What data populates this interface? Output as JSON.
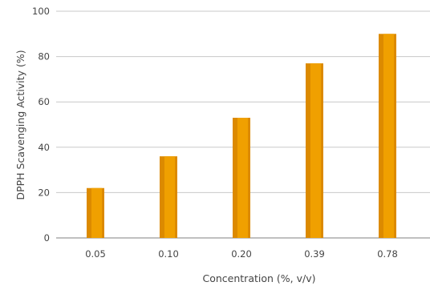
{
  "chart_data": {
    "type": "bar",
    "title": "",
    "xlabel": "Concentration (%, v/v)",
    "ylabel": "DPPH Scavenging Activity (%)",
    "categories": [
      "0.05",
      "0.10",
      "0.20",
      "0.39",
      "0.78"
    ],
    "values": [
      22,
      36,
      53,
      77,
      90
    ],
    "ylim": [
      0,
      100
    ],
    "yticks": [
      "0",
      "20",
      "40",
      "60",
      "80",
      "100"
    ],
    "grid": true,
    "legend": "none",
    "colors": {
      "bar": "#F0A000",
      "bar_shade": "#DC8A00",
      "grid": "#C8C8C8",
      "text": "#444444"
    }
  }
}
